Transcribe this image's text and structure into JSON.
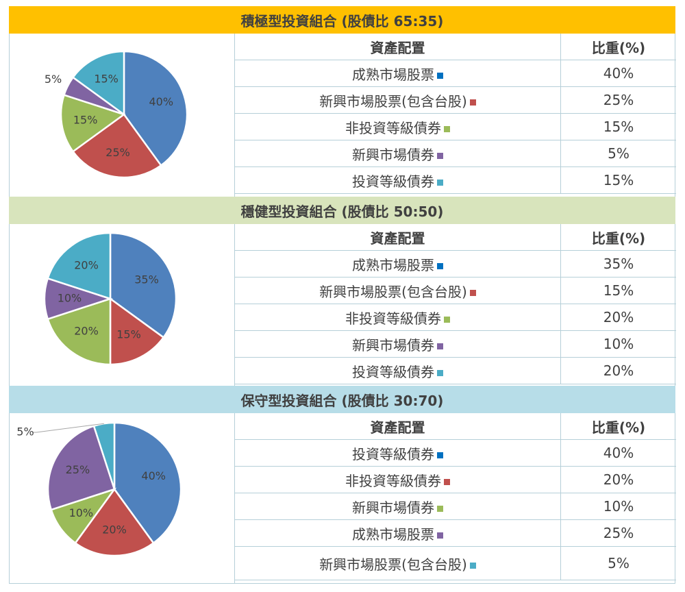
{
  "colors": {
    "blue": "#4f81bd",
    "red": "#c0504d",
    "green": "#9bbb59",
    "purple": "#8064a2",
    "cyan": "#4bacc6",
    "marker_blue": "#0070c0",
    "banner_gold": "#ffc000",
    "banner_green": "#d8e4bc",
    "banner_blue": "#b7dde8"
  },
  "table_header": {
    "allocation": "資產配置",
    "weight": "比重(%)"
  },
  "chart_data": [
    {
      "type": "pie",
      "title": "積極型投資組合 (股債比 65:35)",
      "categories": [
        "成熟市場股票",
        "新興市場股票(包含台股)",
        "非投資等級債券",
        "新興市場債券",
        "投資等級債券"
      ],
      "values": [
        40,
        25,
        15,
        5,
        15
      ],
      "value_labels": [
        "40%",
        "25%",
        "15%",
        "5%",
        "15%"
      ],
      "colors": [
        "#4f81bd",
        "#c0504d",
        "#9bbb59",
        "#8064a2",
        "#4bacc6"
      ],
      "marker_colors": [
        "#0070c0",
        "#c0504d",
        "#9bbb59",
        "#8064a2",
        "#4bacc6"
      ]
    },
    {
      "type": "pie",
      "title": "穩健型投資組合 (股債比 50:50)",
      "categories": [
        "成熟市場股票",
        "新興市場股票(包含台股)",
        "非投資等級債券",
        "新興市場債券",
        "投資等級債券"
      ],
      "values": [
        35,
        15,
        20,
        10,
        20
      ],
      "value_labels": [
        "35%",
        "15%",
        "20%",
        "10%",
        "20%"
      ],
      "colors": [
        "#4f81bd",
        "#c0504d",
        "#9bbb59",
        "#8064a2",
        "#4bacc6"
      ],
      "marker_colors": [
        "#0070c0",
        "#c0504d",
        "#9bbb59",
        "#8064a2",
        "#4bacc6"
      ]
    },
    {
      "type": "pie",
      "title": "保守型投資組合 (股債比 30:70)",
      "categories": [
        "投資等級債券",
        "非投資等級債券",
        "新興市場債券",
        "成熟市場股票",
        "新興市場股票(包含台股)"
      ],
      "values": [
        40,
        20,
        10,
        25,
        5
      ],
      "value_labels": [
        "40%",
        "20%",
        "10%",
        "25%",
        "5%"
      ],
      "colors": [
        "#4f81bd",
        "#c0504d",
        "#9bbb59",
        "#8064a2",
        "#4bacc6"
      ],
      "marker_colors": [
        "#0070c0",
        "#c0504d",
        "#9bbb59",
        "#8064a2",
        "#4bacc6"
      ]
    }
  ]
}
